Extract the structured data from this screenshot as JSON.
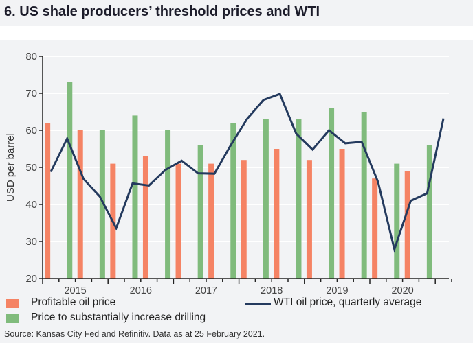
{
  "title": "6. US shale producers’ threshold prices and WTI",
  "source": "Source: Kansas City Fed and Refinitiv. Data as at 25 February 2021.",
  "colors": {
    "profitable": "#f58364",
    "drilling": "#80bb7c",
    "wti": "#243a5e",
    "background": "#f2f3f5",
    "grid": "#ffffff"
  },
  "chart_data": {
    "type": "bar+line",
    "title": "6. US shale producers’ threshold prices and WTI",
    "ylabel": "USD per barrel",
    "xlabel": "",
    "ylim": [
      20,
      80
    ],
    "yticks": [
      20,
      30,
      40,
      50,
      60,
      70,
      80
    ],
    "xtick_labels": [
      "2015",
      "2016",
      "2017",
      "2018",
      "2019",
      "2020"
    ],
    "grid": true,
    "legend_placement": "bottom",
    "quarters": [
      "2015Q1",
      "2015Q2",
      "2015Q3",
      "2015Q4",
      "2016Q1",
      "2016Q2",
      "2016Q3",
      "2016Q4",
      "2017Q1",
      "2017Q2",
      "2017Q3",
      "2017Q4",
      "2018Q1",
      "2018Q2",
      "2018Q3",
      "2018Q4",
      "2019Q1",
      "2019Q2",
      "2019Q3",
      "2019Q4",
      "2020Q1",
      "2020Q2",
      "2020Q3",
      "2020Q4",
      "2021Q1"
    ],
    "series": [
      {
        "name": "Profitable oil price",
        "type": "bar",
        "x": [
          "2015Q1",
          "2015Q3",
          "2016Q1",
          "2016Q3",
          "2017Q1",
          "2017Q3",
          "2018Q1",
          "2018Q3",
          "2019Q1",
          "2019Q3",
          "2020Q1",
          "2020Q3"
        ],
        "values": [
          62,
          60,
          51,
          53,
          51,
          51,
          52,
          55,
          52,
          55,
          47,
          49
        ]
      },
      {
        "name": "Price to substantially increase drilling",
        "type": "bar",
        "x": [
          "2015Q2",
          "2015Q4",
          "2016Q2",
          "2016Q4",
          "2017Q2",
          "2017Q4",
          "2018Q2",
          "2018Q4",
          "2019Q2",
          "2019Q4",
          "2020Q2",
          "2020Q4"
        ],
        "values": [
          73,
          60,
          64,
          60,
          56,
          62,
          63,
          63,
          66,
          65,
          51,
          56
        ]
      },
      {
        "name": "WTI oil price, quarterly average",
        "type": "line",
        "values": [
          48.8,
          57.8,
          46.9,
          42.1,
          33.6,
          45.7,
          45.1,
          49.3,
          51.8,
          48.4,
          48.3,
          56.0,
          63.1,
          68.2,
          69.8,
          59.1,
          54.8,
          60.0,
          56.5,
          56.9,
          46.1,
          27.9,
          41.0,
          43.0,
          63.2
        ]
      }
    ]
  }
}
